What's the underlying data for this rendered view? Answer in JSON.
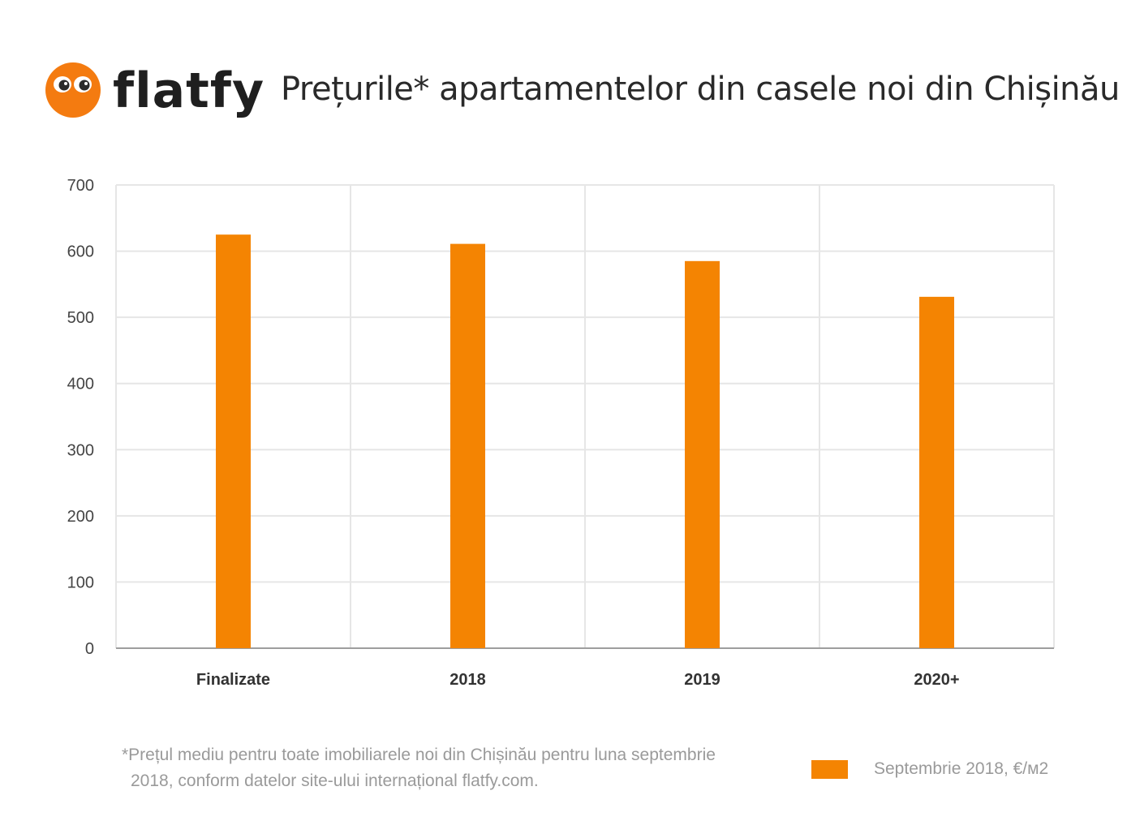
{
  "brand": {
    "name": "flatfy",
    "color": "#f48000"
  },
  "title": "Prețurile* apartamentelor din casele noi din Chișinău",
  "footnote": {
    "line1": "*Prețul mediu pentru toate imobiliarele noi din Chișinău pentru luna septembrie",
    "line2": "2018, conform datelor site-ului internațional flatfy.com."
  },
  "legend": {
    "label": "Septembrie 2018, €/м2",
    "color": "#f48402"
  },
  "chart_data": {
    "type": "bar",
    "categories": [
      "Finalizate",
      "2018",
      "2019",
      "2020+"
    ],
    "series": [
      {
        "name": "Septembrie 2018, €/м2",
        "values": [
          625,
          611,
          585,
          531
        ],
        "color": "#f48402"
      }
    ],
    "ylim": [
      0,
      700
    ],
    "yticks": [
      0,
      100,
      200,
      300,
      400,
      500,
      600,
      700
    ],
    "grid": true,
    "legend_position": "bottom-right"
  }
}
